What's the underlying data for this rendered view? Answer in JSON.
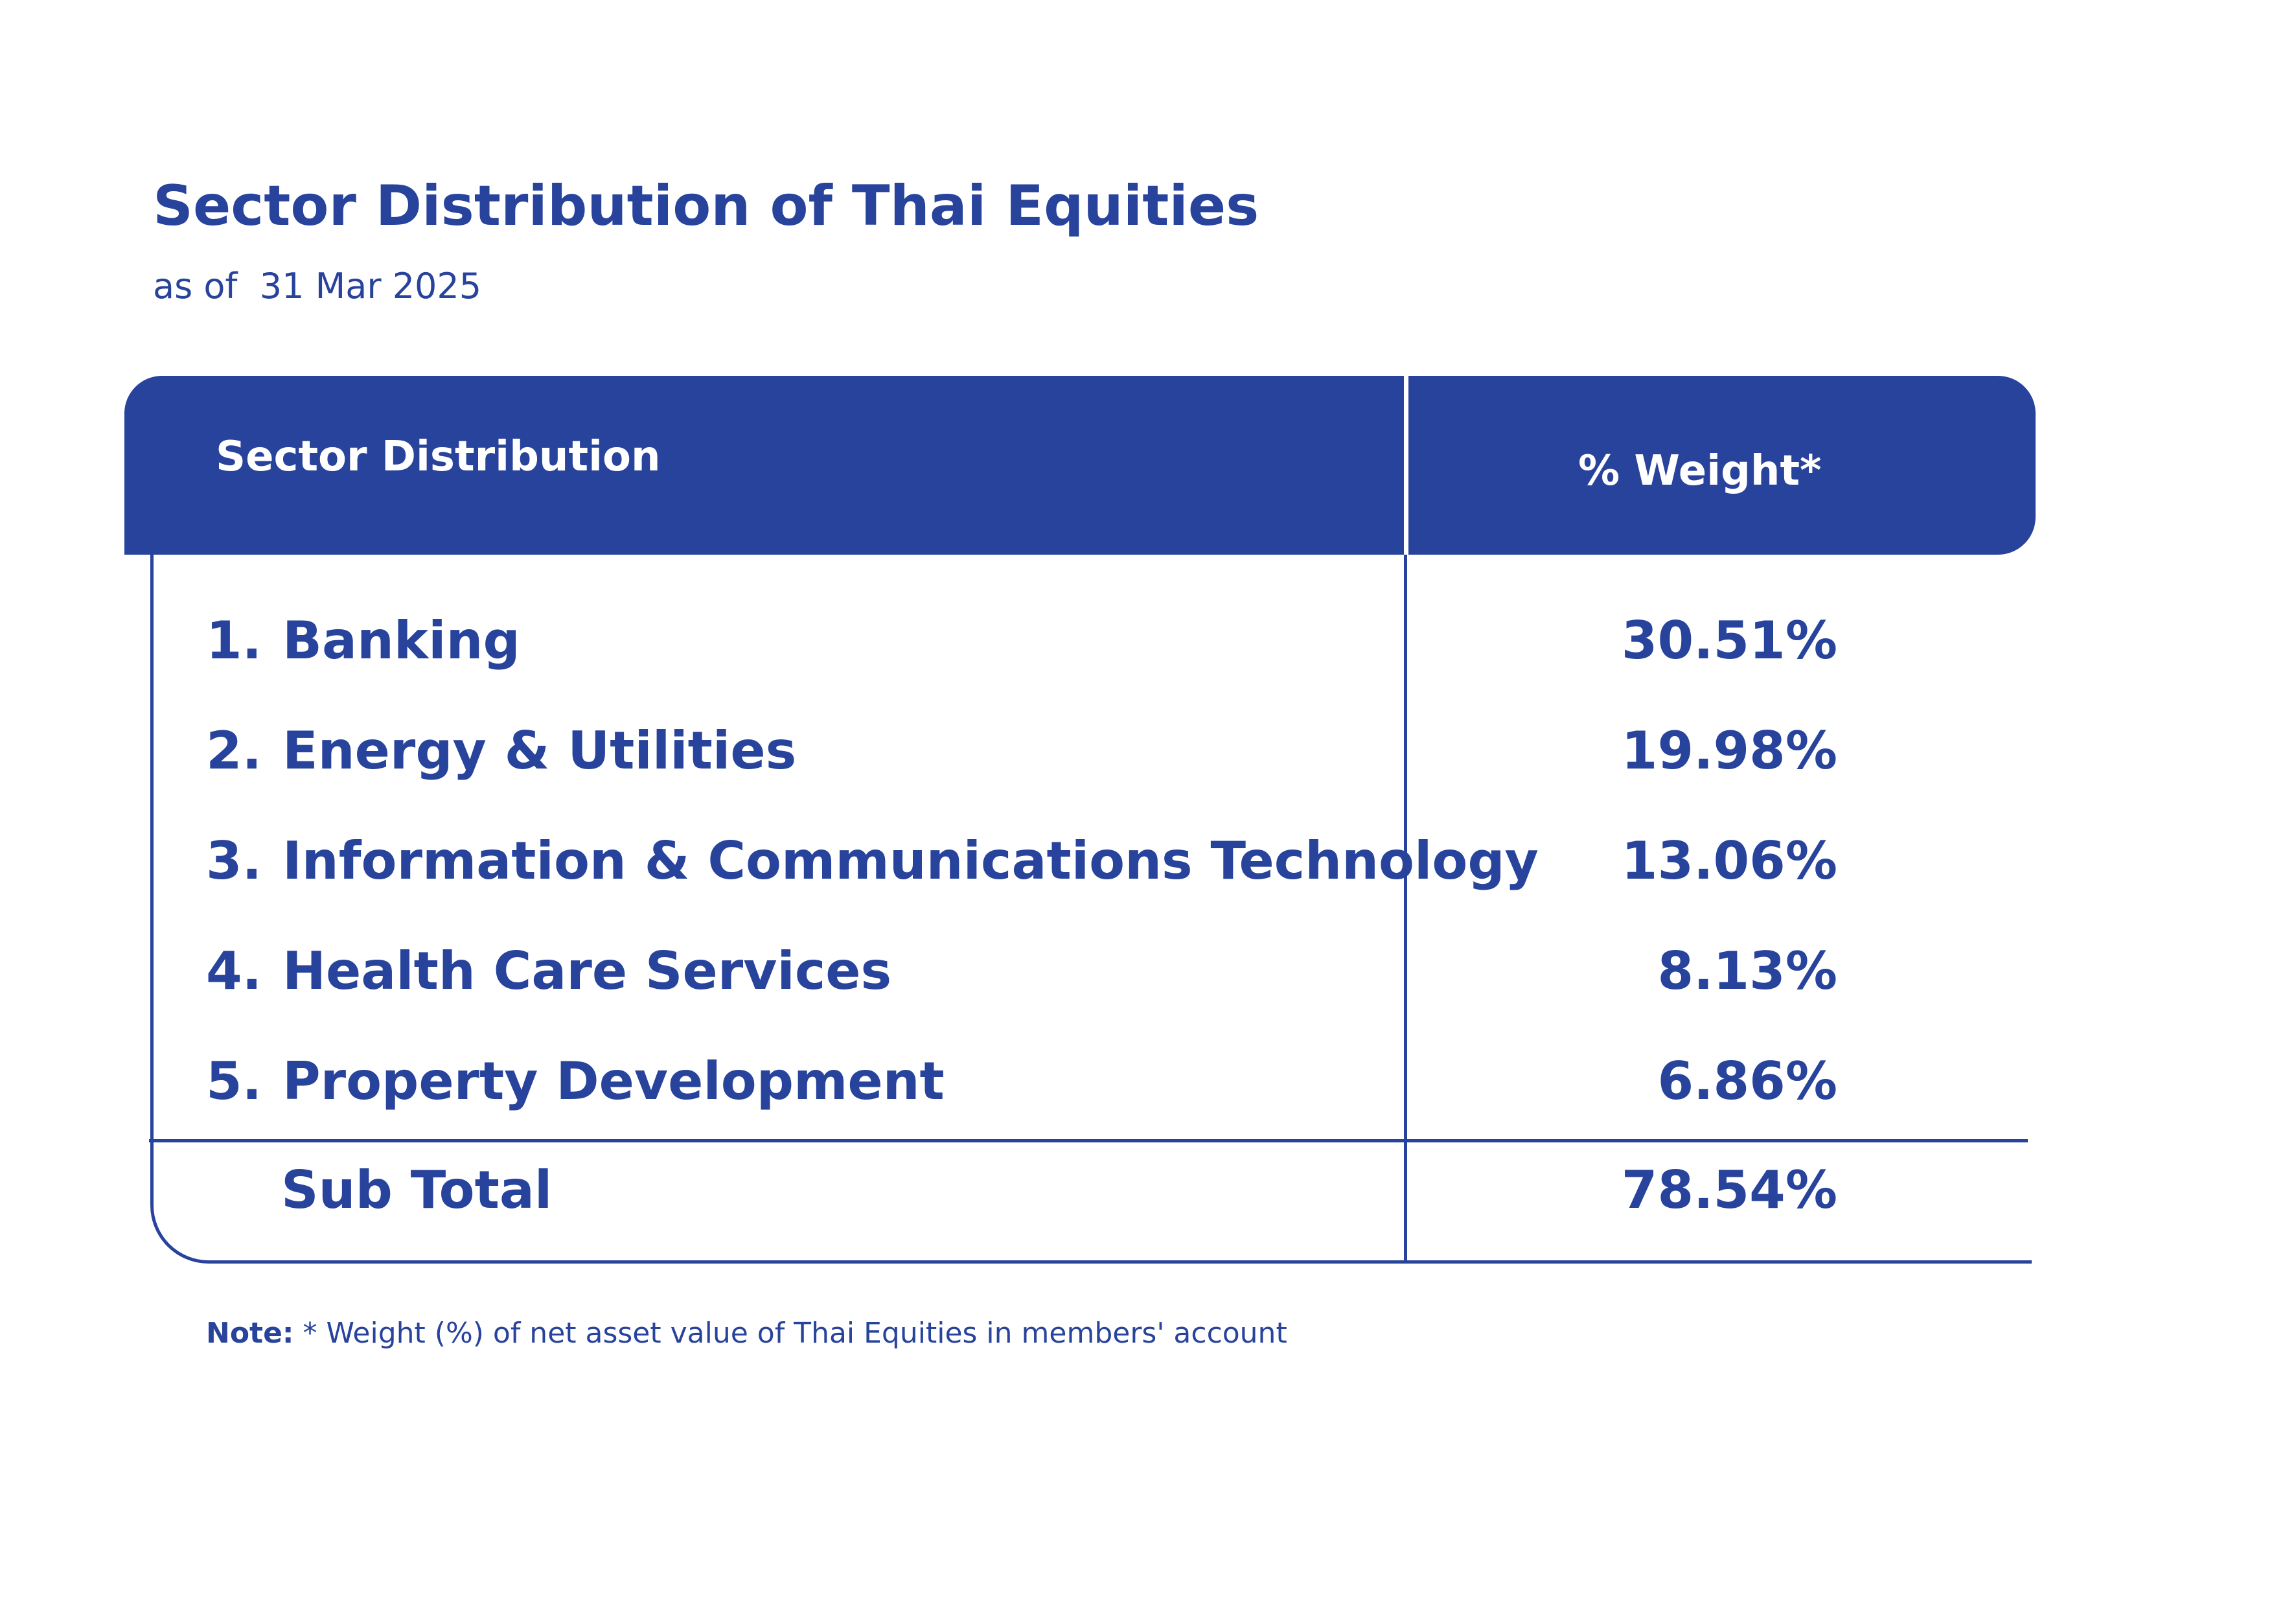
{
  "title": "Sector Distribution of Thai Equities",
  "subtitle": "as of  31 Mar 2025",
  "table": {
    "header": {
      "sector": "Sector Distribution",
      "weight": "% Weight*"
    },
    "rows": [
      {
        "num": "1.",
        "sector": "Banking",
        "weight": "30.51%"
      },
      {
        "num": "2.",
        "sector": "Energy & Utilities",
        "weight": "19.98%"
      },
      {
        "num": "3.",
        "sector": "Information & Communications Technology",
        "weight": "13.06%"
      },
      {
        "num": "4.",
        "sector": "Health Care Services",
        "weight": "8.13%"
      },
      {
        "num": "5.",
        "sector": "Property Development",
        "weight": "6.86%"
      }
    ],
    "subtotal": {
      "label": "Sub Total",
      "weight": "78.54%"
    }
  },
  "note": {
    "label": "Note:",
    "text": " * Weight (%) of net asset value of Thai Equities in members' account"
  },
  "colors": {
    "primary": "#28439c",
    "background": "#ffffff"
  }
}
